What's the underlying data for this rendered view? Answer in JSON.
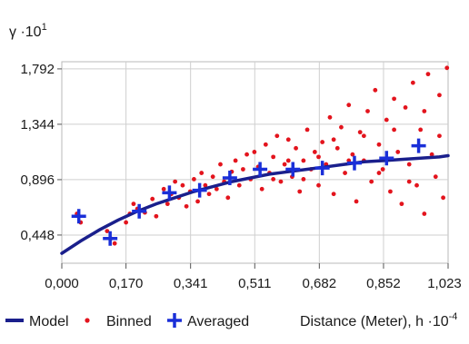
{
  "chart_data": {
    "type": "scatter",
    "title": "",
    "ylabel": {
      "base": "γ ·10",
      "exponent": "1"
    },
    "xlabel": {
      "base": "Distance (Meter), h ·10",
      "exponent": "-4"
    },
    "xlim": [
      0,
      1.023
    ],
    "ylim": [
      0.22,
      1.85
    ],
    "x_ticks": [
      "0,000",
      "0,170",
      "0,341",
      "0,511",
      "0,682",
      "0,852",
      "1,023"
    ],
    "x_tick_values": [
      0,
      0.17,
      0.341,
      0.511,
      0.682,
      0.852,
      1.023
    ],
    "y_ticks": [
      "0,448",
      "0,896",
      "1,344",
      "1,792"
    ],
    "y_tick_values": [
      0.448,
      0.896,
      1.344,
      1.792
    ],
    "grid": true,
    "legend": {
      "placement": "bottom",
      "entries": [
        {
          "label": "Model",
          "marker": "line",
          "color": "#1a1f8c"
        },
        {
          "label": "Binned",
          "marker": "dot",
          "color": "#e3141d"
        },
        {
          "label": "Averaged",
          "marker": "cross",
          "color": "#1a2fd8"
        }
      ]
    },
    "series": [
      {
        "name": "Model",
        "kind": "line",
        "color": "#1a1f8c",
        "x": [
          0,
          0.05,
          0.1,
          0.15,
          0.2,
          0.25,
          0.3,
          0.35,
          0.4,
          0.45,
          0.5,
          0.55,
          0.6,
          0.65,
          0.7,
          0.75,
          0.8,
          0.85,
          0.9,
          0.95,
          1.0,
          1.023
        ],
        "y": [
          0.3,
          0.4,
          0.49,
          0.57,
          0.64,
          0.7,
          0.75,
          0.8,
          0.84,
          0.88,
          0.91,
          0.94,
          0.96,
          0.98,
          1.0,
          1.02,
          1.04,
          1.05,
          1.06,
          1.07,
          1.08,
          1.09
        ]
      },
      {
        "name": "Binned",
        "kind": "scatter",
        "color": "#e3141d",
        "points": [
          [
            0.04,
            0.62
          ],
          [
            0.05,
            0.55
          ],
          [
            0.12,
            0.48
          ],
          [
            0.13,
            0.42
          ],
          [
            0.14,
            0.38
          ],
          [
            0.17,
            0.55
          ],
          [
            0.18,
            0.62
          ],
          [
            0.19,
            0.7
          ],
          [
            0.2,
            0.66
          ],
          [
            0.22,
            0.63
          ],
          [
            0.24,
            0.74
          ],
          [
            0.25,
            0.6
          ],
          [
            0.27,
            0.82
          ],
          [
            0.28,
            0.7
          ],
          [
            0.29,
            0.78
          ],
          [
            0.3,
            0.88
          ],
          [
            0.31,
            0.75
          ],
          [
            0.32,
            0.85
          ],
          [
            0.33,
            0.68
          ],
          [
            0.34,
            0.8
          ],
          [
            0.35,
            0.9
          ],
          [
            0.36,
            0.72
          ],
          [
            0.37,
            0.95
          ],
          [
            0.38,
            0.85
          ],
          [
            0.39,
            0.78
          ],
          [
            0.4,
            0.92
          ],
          [
            0.41,
            0.82
          ],
          [
            0.42,
            1.02
          ],
          [
            0.43,
            0.88
          ],
          [
            0.44,
            0.75
          ],
          [
            0.45,
            0.96
          ],
          [
            0.46,
            1.05
          ],
          [
            0.47,
            0.85
          ],
          [
            0.48,
            0.98
          ],
          [
            0.49,
            1.1
          ],
          [
            0.5,
            0.9
          ],
          [
            0.51,
            1.12
          ],
          [
            0.52,
            1.0
          ],
          [
            0.53,
            0.82
          ],
          [
            0.54,
            1.18
          ],
          [
            0.55,
            0.95
          ],
          [
            0.56,
            1.08
          ],
          [
            0.57,
            1.25
          ],
          [
            0.58,
            0.88
          ],
          [
            0.59,
            1.02
          ],
          [
            0.6,
            1.22
          ],
          [
            0.61,
            0.92
          ],
          [
            0.62,
            1.15
          ],
          [
            0.63,
            0.8
          ],
          [
            0.64,
            1.05
          ],
          [
            0.65,
            1.3
          ],
          [
            0.66,
            0.98
          ],
          [
            0.67,
            1.12
          ],
          [
            0.68,
            0.85
          ],
          [
            0.69,
            1.2
          ],
          [
            0.7,
            1.02
          ],
          [
            0.71,
            1.4
          ],
          [
            0.72,
            0.78
          ],
          [
            0.73,
            1.15
          ],
          [
            0.74,
            1.32
          ],
          [
            0.75,
            0.95
          ],
          [
            0.76,
            1.5
          ],
          [
            0.77,
            1.1
          ],
          [
            0.78,
            0.72
          ],
          [
            0.79,
            1.28
          ],
          [
            0.8,
            1.05
          ],
          [
            0.81,
            1.45
          ],
          [
            0.82,
            0.88
          ],
          [
            0.83,
            1.62
          ],
          [
            0.84,
            1.18
          ],
          [
            0.85,
            0.98
          ],
          [
            0.86,
            1.38
          ],
          [
            0.87,
            0.8
          ],
          [
            0.88,
            1.55
          ],
          [
            0.89,
            1.12
          ],
          [
            0.9,
            0.7
          ],
          [
            0.91,
            1.48
          ],
          [
            0.92,
            1.02
          ],
          [
            0.93,
            1.68
          ],
          [
            0.94,
            0.85
          ],
          [
            0.95,
            1.3
          ],
          [
            0.96,
            0.62
          ],
          [
            0.97,
            1.75
          ],
          [
            0.98,
            1.1
          ],
          [
            0.99,
            0.92
          ],
          [
            1.0,
            1.58
          ],
          [
            1.01,
            0.75
          ],
          [
            1.02,
            1.8
          ],
          [
            1.0,
            1.25
          ],
          [
            0.96,
            1.45
          ],
          [
            0.92,
            0.88
          ],
          [
            0.88,
            1.3
          ],
          [
            0.84,
            0.95
          ],
          [
            0.8,
            1.25
          ],
          [
            0.76,
            1.05
          ],
          [
            0.72,
            1.22
          ],
          [
            0.68,
            1.08
          ],
          [
            0.64,
            0.9
          ],
          [
            0.6,
            1.05
          ],
          [
            0.56,
            0.9
          ]
        ]
      },
      {
        "name": "Averaged",
        "kind": "scatter",
        "color": "#1a2fd8",
        "points": [
          [
            0.045,
            0.6
          ],
          [
            0.128,
            0.42
          ],
          [
            0.205,
            0.64
          ],
          [
            0.285,
            0.79
          ],
          [
            0.365,
            0.81
          ],
          [
            0.445,
            0.91
          ],
          [
            0.525,
            0.98
          ],
          [
            0.612,
            0.98
          ],
          [
            0.69,
            0.99
          ],
          [
            0.775,
            1.03
          ],
          [
            0.86,
            1.07
          ],
          [
            0.945,
            1.17
          ]
        ]
      }
    ]
  }
}
